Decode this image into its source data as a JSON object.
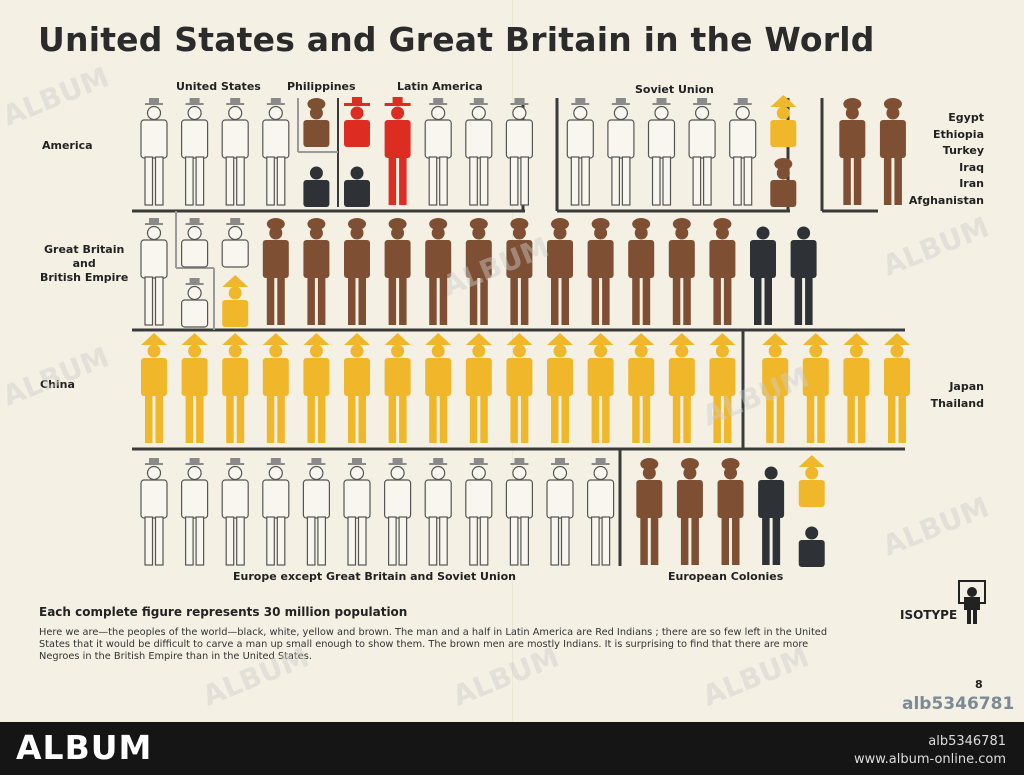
{
  "title": "United States and Great Britain in the World",
  "colors": {
    "white": "#f8f6ee",
    "brown": "#7e4f33",
    "black": "#2e3237",
    "yellow": "#f0b72a",
    "red": "#dd2c22",
    "outline": "#555555",
    "frame": "#3a3a3a",
    "hat_gray": "#8a8a8a",
    "paper": "#f4f1e4"
  },
  "chart_data": {
    "type": "pictogram",
    "unit": "Each complete figure represents 30 million population",
    "rows": [
      {
        "label": "America",
        "groups": [
          {
            "label": "United States",
            "figures": [
              "white",
              "white",
              "white",
              "white",
              "brown:half",
              "black:half"
            ]
          },
          {
            "label": "Philippines",
            "figures": [
              "brown:half"
            ]
          },
          {
            "label": "Latin America",
            "figures": [
              "red:half",
              "black:half",
              "red",
              "white",
              "white",
              "white"
            ]
          },
          {
            "label": "Soviet Union",
            "figures": [
              "white",
              "white",
              "white",
              "white",
              "white",
              "yellow:half",
              "brown:half"
            ]
          },
          {
            "label": "Egypt Ethiopia Turkey Iraq Iran Afghanistan",
            "figures": [
              "brown",
              "brown"
            ]
          }
        ]
      },
      {
        "label": "Great Britain and British Empire",
        "groups": [
          {
            "label": "Great Britain",
            "figures": [
              "white",
              "white:half",
              "white:half"
            ]
          },
          {
            "label": "British Empire",
            "figures": [
              "yellow:half",
              "brown",
              "brown",
              "brown",
              "brown",
              "brown",
              "brown",
              "brown",
              "brown",
              "brown",
              "brown",
              "brown",
              "brown",
              "black",
              "black"
            ]
          }
        ]
      },
      {
        "label": "China",
        "groups": [
          {
            "label": "China",
            "figures": [
              "yellow",
              "yellow",
              "yellow",
              "yellow",
              "yellow",
              "yellow",
              "yellow",
              "yellow",
              "yellow",
              "yellow",
              "yellow",
              "yellow",
              "yellow",
              "yellow",
              "yellow"
            ]
          },
          {
            "label": "Japan Thailand",
            "figures": [
              "yellow",
              "yellow",
              "yellow",
              "yellow"
            ]
          }
        ]
      },
      {
        "label": "Europe",
        "groups": [
          {
            "label": "Europe except Great Britain and Soviet Union",
            "figures": [
              "white",
              "white",
              "white",
              "white",
              "white",
              "white",
              "white",
              "white",
              "white",
              "white",
              "white",
              "white"
            ]
          },
          {
            "label": "European Colonies",
            "figures": [
              "brown",
              "brown",
              "brown",
              "black",
              "yellow:half",
              "black:half"
            ]
          }
        ]
      }
    ]
  },
  "labels": {
    "row_america": "America",
    "row_gb": [
      "Great Britain",
      "and",
      "British Empire"
    ],
    "row_china": "China",
    "united_states": "United States",
    "philippines": "Philippines",
    "latin_america": "Latin America",
    "soviet_union": "Soviet Union",
    "middle_east": [
      "Egypt",
      "Ethiopia",
      "Turkey",
      "Iraq",
      "Iran",
      "Afghanistan"
    ],
    "japan_thailand": [
      "Japan",
      "Thailand"
    ],
    "europe": "Europe except Great Britain and Soviet Union",
    "european_colonies": "European Colonies"
  },
  "key": "Each complete figure represents 30 million population",
  "caption": "Here we are—the peoples of the world—black, white, yellow and brown.  The man and a half in Latin America are Red Indians ; there are so few left in the United States that it would be difficult to carve a man up small enough to show them.  The brown men are mostly Indians.  It is surprising to find that there are more Negroes in the British Empire than in the United States.",
  "isotype": "ISOTYPE",
  "page_number": "8",
  "image_id": "alb5346781",
  "watermark": "ALBUM",
  "footer": {
    "brand": "ALBUM",
    "image_id": "alb5346781",
    "site": "www.album-online.com"
  }
}
